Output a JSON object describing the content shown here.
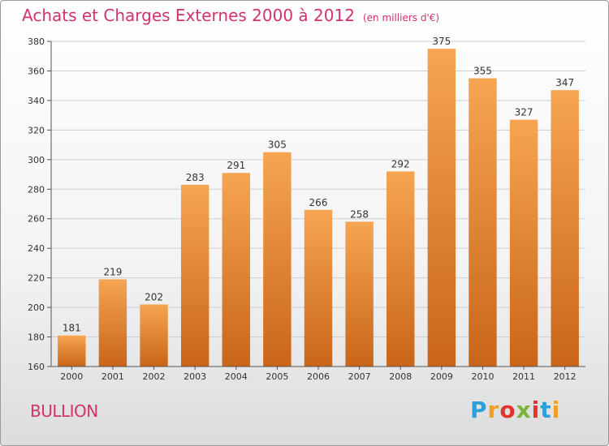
{
  "header": {
    "title": "Achats et Charges Externes 2000 à 2012",
    "unit": "(en milliers d'€)"
  },
  "footer": {
    "commune": "BULLION",
    "logo_letters": [
      "P",
      "r",
      "o",
      "x",
      "i",
      "t",
      "i"
    ],
    "logo_colors": [
      "#2e9fd8",
      "#f0a020",
      "#e3342f",
      "#7bb43b",
      "#e3342f",
      "#2e9fd8",
      "#f0a020"
    ]
  },
  "colors": {
    "bar_top": "#f6a552",
    "bar_bottom": "#c9651a",
    "grid": "#cfcfcf",
    "title": "#d0336e"
  },
  "chart_data": {
    "type": "bar",
    "categories": [
      "2000",
      "2001",
      "2002",
      "2003",
      "2004",
      "2005",
      "2006",
      "2007",
      "2008",
      "2009",
      "2010",
      "2011",
      "2012"
    ],
    "values": [
      181,
      219,
      202,
      283,
      291,
      305,
      266,
      258,
      292,
      375,
      355,
      327,
      347
    ],
    "ylim": [
      160,
      380
    ],
    "yticks": [
      160,
      180,
      200,
      220,
      240,
      260,
      280,
      300,
      320,
      340,
      360,
      380
    ],
    "grid": true,
    "data_labels": true
  }
}
